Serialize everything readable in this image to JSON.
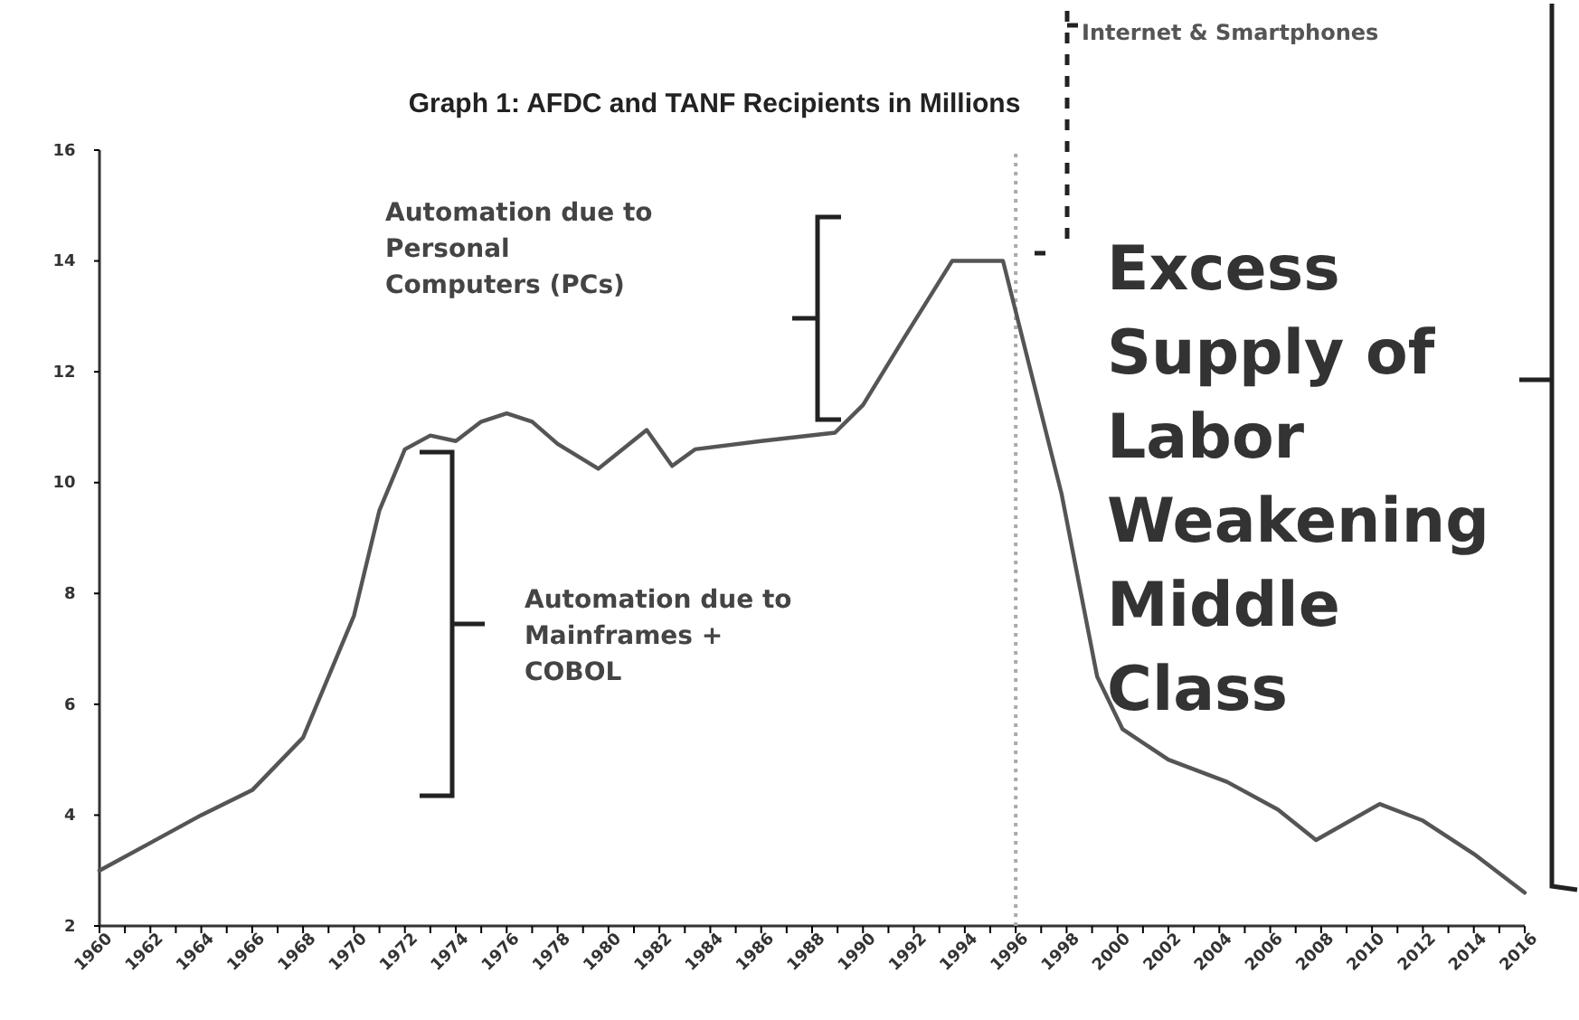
{
  "chart_data": {
    "type": "line",
    "title": "Graph 1: AFDC and TANF Recipients in Millions",
    "x": [
      1960,
      1962,
      1964,
      1966,
      1968,
      1970,
      1971,
      1972,
      1973,
      1974,
      1975,
      1976,
      1977,
      1978,
      1979.6,
      1981.5,
      1982.5,
      1983.4,
      1986,
      1988.9,
      1990,
      1991.6,
      1993.5,
      1995.5,
      1997.8,
      1999.2,
      2000.2,
      2002,
      2004.3,
      2006.3,
      2007.8,
      2010.3,
      2012,
      2014,
      2016
    ],
    "series": [
      {
        "color": "#555555",
        "values": [
          3.0,
          3.5,
          4.0,
          4.45,
          5.4,
          7.6,
          9.5,
          10.6,
          10.85,
          10.75,
          11.1,
          11.25,
          11.1,
          10.7,
          10.25,
          10.95,
          10.3,
          10.6,
          10.75,
          10.9,
          11.4,
          12.6,
          14.0,
          14.0,
          9.8,
          6.5,
          5.55,
          5.0,
          4.6,
          4.1,
          3.55,
          4.2,
          3.9,
          3.3,
          2.6
        ]
      }
    ],
    "xlim": [
      1960,
      2016
    ],
    "ylim": [
      2,
      16
    ],
    "xticks": [
      1960,
      {
        "value": 1961,
        "label": null
      },
      1962,
      {
        "value": 1963,
        "label": null
      },
      1964,
      {
        "value": 1965,
        "label": null
      },
      1966,
      {
        "value": 1967,
        "label": null
      },
      1968,
      {
        "value": 1969,
        "label": null
      },
      1970,
      {
        "value": 1971,
        "label": null
      },
      1972,
      {
        "value": 1973,
        "label": null
      },
      1974,
      {
        "value": 1975,
        "label": null
      },
      1976,
      {
        "value": 1977,
        "label": null
      },
      1978,
      {
        "value": 1979,
        "label": null
      },
      1980,
      {
        "value": 1981,
        "label": null
      },
      1982,
      {
        "value": 1983,
        "label": null
      },
      1984,
      {
        "value": 1985,
        "label": null
      },
      1986,
      {
        "value": 1987,
        "label": null
      },
      1988,
      {
        "value": 1989,
        "label": null
      },
      1990,
      {
        "value": 1991,
        "label": null
      },
      1992,
      {
        "value": 1993,
        "label": null
      },
      1994,
      {
        "value": 1995,
        "label": null
      },
      1996,
      {
        "value": 1997,
        "label": null
      },
      1998,
      {
        "value": 1999,
        "label": null
      },
      2000,
      {
        "value": 2001,
        "label": null
      },
      2002,
      {
        "value": 2003,
        "label": null
      },
      2004,
      {
        "value": 2005,
        "label": null
      },
      2006,
      {
        "value": 2007,
        "label": null
      },
      2008,
      {
        "value": 2009,
        "label": null
      },
      2010,
      {
        "value": 2011,
        "label": null
      },
      2012,
      {
        "value": 2013,
        "label": null
      },
      2014,
      {
        "value": 2015,
        "label": null
      },
      2016
    ],
    "yticks": [
      2,
      4,
      6,
      8,
      10,
      12,
      14,
      16
    ],
    "ref_lines": [
      {
        "axis": "x",
        "value": 1996,
        "color": "#aaaaaa",
        "line_style": "dotted"
      }
    ],
    "annotations": [
      "Automation due to Personal Computers (PCs)",
      "Automation due to Mainframes + COBOL",
      "Internet & Smartphones",
      "Excess Supply of Labor Weakening Middle Class"
    ]
  }
}
